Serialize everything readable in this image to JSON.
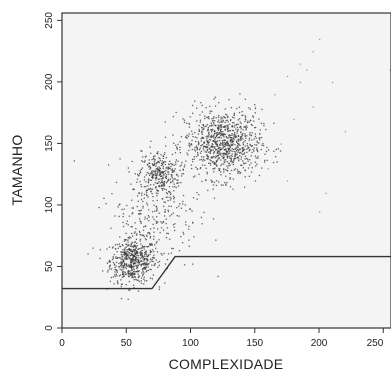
{
  "chart_data": {
    "type": "scatter",
    "title": "",
    "xlabel": "COMPLEXIDADE",
    "ylabel": "TAMANHO",
    "xlim": [
      0,
      256
    ],
    "ylim": [
      0,
      256
    ],
    "x_ticks": [
      0,
      50,
      100,
      150,
      200,
      250
    ],
    "y_ticks": [
      0,
      50,
      100,
      150,
      200,
      250
    ],
    "x_tick_labels": [
      "0",
      "50",
      "100",
      "150",
      "200",
      "250"
    ],
    "y_tick_labels": [
      "0",
      "50",
      "100",
      "150",
      "200",
      "250"
    ],
    "grid": false,
    "legend": "none",
    "point_color": "#333333",
    "clusters": [
      {
        "name": "",
        "center": [
          55,
          55
        ],
        "spread": [
          9,
          9
        ],
        "count": 520
      },
      {
        "name": "",
        "center": [
          75,
          125
        ],
        "spread": [
          8,
          10
        ],
        "count": 300
      },
      {
        "name": "",
        "center": [
          125,
          150
        ],
        "spread": [
          15,
          14
        ],
        "count": 900
      },
      {
        "name": "",
        "center": [
          70,
          90
        ],
        "spread": [
          18,
          22
        ],
        "count": 260
      }
    ],
    "outliers": [
      [
        175,
        205
      ],
      [
        185,
        215
      ],
      [
        195,
        225
      ],
      [
        200,
        235
      ],
      [
        190,
        210
      ],
      [
        165,
        190
      ],
      [
        210,
        200
      ],
      [
        180,
        170
      ],
      [
        195,
        180
      ],
      [
        205,
        110
      ],
      [
        200,
        95
      ],
      [
        175,
        120
      ],
      [
        160,
        130
      ],
      [
        220,
        160
      ],
      [
        185,
        200
      ],
      [
        255,
        210
      ],
      [
        150,
        180
      ],
      [
        170,
        150
      ]
    ],
    "gate": {
      "type": "polyline",
      "points": [
        [
          0,
          32
        ],
        [
          70,
          32
        ],
        [
          88,
          58
        ],
        [
          256,
          58
        ]
      ],
      "color": "#333333"
    }
  }
}
